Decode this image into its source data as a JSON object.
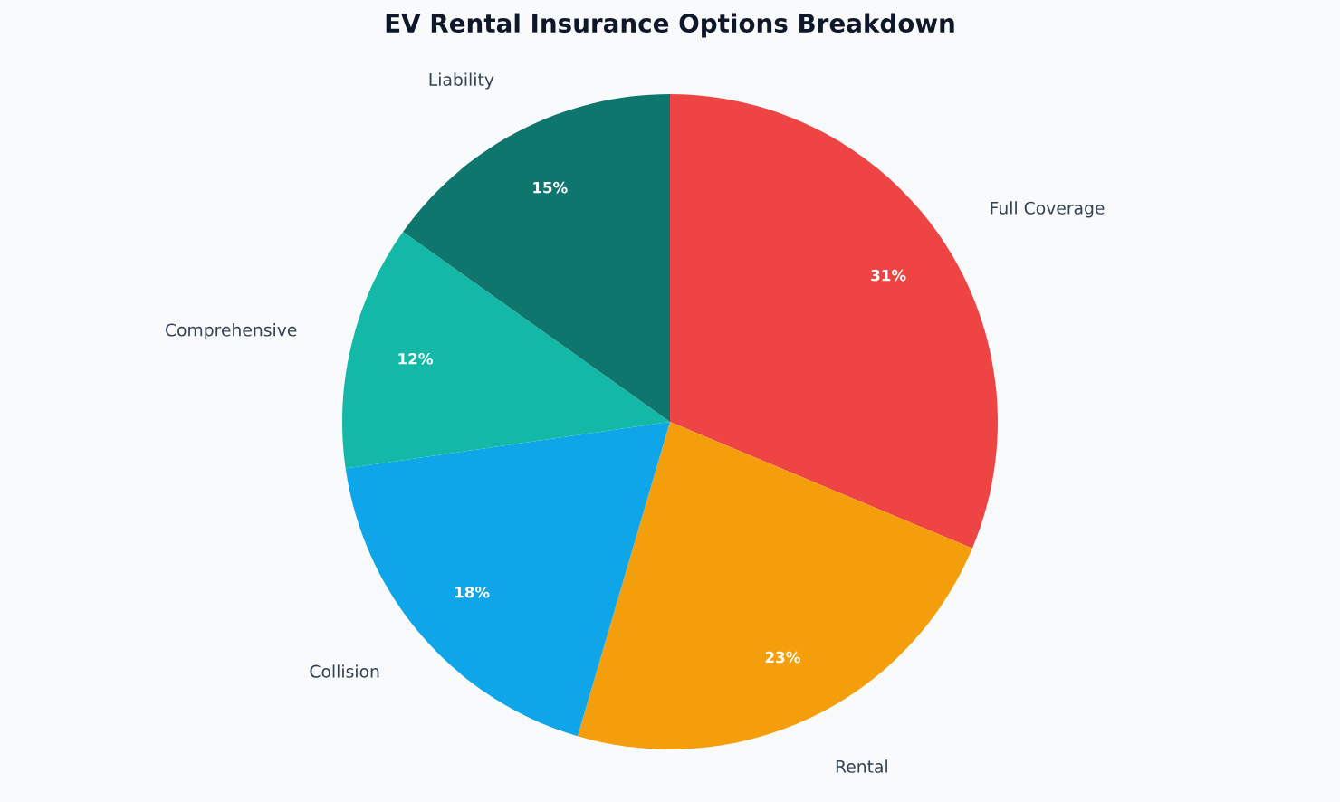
{
  "chart_data": {
    "type": "pie",
    "title": "EV Rental Insurance Options Breakdown",
    "categories": [
      "Full Coverage",
      "Rental",
      "Collision",
      "Comprehensive",
      "Liability"
    ],
    "values": [
      31,
      23,
      18,
      12,
      15
    ],
    "value_labels": [
      "31%",
      "23%",
      "18%",
      "12%",
      "15%"
    ],
    "colors": [
      "#ef4444",
      "#f59e0b",
      "#0ea5e9",
      "#14b8a6",
      "#0f766e"
    ]
  }
}
